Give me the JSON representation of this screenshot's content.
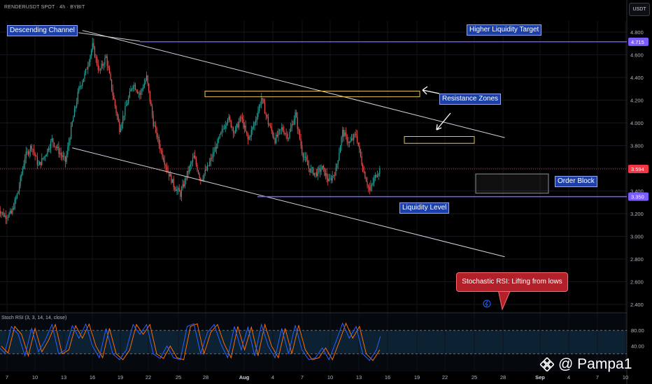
{
  "header": {
    "symbol": "RENDERUSDT SPOT · 4h · BYBIT",
    "currency": "USDT"
  },
  "annotations": {
    "descending_channel": "Descending Channel",
    "higher_liquidity_target": "Higher Liquidity Target",
    "resistance_zones": "Resistance Zones",
    "order_block": "Order Block",
    "liquidity_level": "Liquidity Level",
    "stoch_callout": "Stochastic RSI: Lifting from lows"
  },
  "watermark": "@ Pampa1",
  "colors": {
    "up": "#26a69a",
    "down": "#ef5350",
    "level": "#7b5cff",
    "zone": "#e6c350",
    "rsi_k": "#2962ff",
    "rsi_d": "#ff6d00",
    "price_line": "#f23645"
  },
  "chart_data": {
    "type": "candlestick",
    "price_axis": {
      "ylim": [
        2.3,
        4.95
      ],
      "ticks": [
        "4.800",
        "4.600",
        "4.400",
        "4.200",
        "4.000",
        "3.800",
        "3.600",
        "3.400",
        "3.200",
        "3.000",
        "2.800",
        "2.600",
        "2.400"
      ]
    },
    "x_axis": {
      "ticks": [
        "7",
        "10",
        "13",
        "16",
        "19",
        "22",
        "25",
        "28",
        "Aug",
        "4",
        "7",
        "10",
        "13",
        "16",
        "19",
        "22",
        "25",
        "28",
        "Sep",
        "4",
        "7",
        "10"
      ]
    },
    "price_labels": [
      {
        "value": 4.715,
        "text": "4.715",
        "color": "#7b5cff"
      },
      {
        "value": 3.594,
        "text": "3.594",
        "color": "#f23645"
      },
      {
        "value": 3.35,
        "text": "3.350",
        "color": "#7b5cff"
      }
    ],
    "levels": [
      {
        "name": "Higher Liquidity Target",
        "value": 4.715
      },
      {
        "name": "Liquidity Level",
        "value": 3.35
      }
    ],
    "last_price": 3.594,
    "resistance_zones": [
      {
        "from": 4.23,
        "to": 4.28
      },
      {
        "from": 3.82,
        "to": 3.88
      }
    ],
    "order_block": {
      "from": 3.38,
      "to": 3.55
    },
    "price_path": [
      {
        "day": 6.0,
        "price": 3.25
      },
      {
        "day": 7.0,
        "price": 3.18
      },
      {
        "day": 8.0,
        "price": 3.2
      },
      {
        "day": 9.0,
        "price": 3.4
      },
      {
        "day": 10.0,
        "price": 3.7
      },
      {
        "day": 11.0,
        "price": 3.8
      },
      {
        "day": 12.0,
        "price": 3.62
      },
      {
        "day": 13.0,
        "price": 3.72
      },
      {
        "day": 14.0,
        "price": 3.85
      },
      {
        "day": 15.0,
        "price": 3.75
      },
      {
        "day": 16.0,
        "price": 3.66
      },
      {
        "day": 17.0,
        "price": 4.0
      },
      {
        "day": 18.0,
        "price": 4.3
      },
      {
        "day": 19.0,
        "price": 4.45
      },
      {
        "day": 20.0,
        "price": 4.68
      },
      {
        "day": 21.0,
        "price": 4.45
      },
      {
        "day": 22.0,
        "price": 4.58
      },
      {
        "day": 23.0,
        "price": 4.25
      },
      {
        "day": 24.0,
        "price": 3.95
      },
      {
        "day": 25.0,
        "price": 4.15
      },
      {
        "day": 26.0,
        "price": 4.35
      },
      {
        "day": 27.0,
        "price": 4.25
      },
      {
        "day": 28.0,
        "price": 4.4
      },
      {
        "day": 29.0,
        "price": 4.0
      },
      {
        "day": 30.0,
        "price": 3.78
      },
      {
        "day": 31.0,
        "price": 3.6
      },
      {
        "day": 32.0,
        "price": 3.45
      },
      {
        "day": 33.0,
        "price": 3.37
      },
      {
        "day": 34.0,
        "price": 3.55
      },
      {
        "day": 35.0,
        "price": 3.7
      },
      {
        "day": 36.0,
        "price": 3.5
      },
      {
        "day": 37.0,
        "price": 3.6
      },
      {
        "day": 38.0,
        "price": 3.75
      },
      {
        "day": 39.0,
        "price": 3.9
      },
      {
        "day": 40.0,
        "price": 4.05
      },
      {
        "day": 41.0,
        "price": 3.92
      },
      {
        "day": 42.0,
        "price": 4.05
      },
      {
        "day": 43.0,
        "price": 3.85
      },
      {
        "day": 44.0,
        "price": 4.0
      },
      {
        "day": 45.0,
        "price": 4.22
      },
      {
        "day": 46.0,
        "price": 4.0
      },
      {
        "day": 47.0,
        "price": 3.85
      },
      {
        "day": 48.0,
        "price": 3.95
      },
      {
        "day": 49.0,
        "price": 3.88
      },
      {
        "day": 50.0,
        "price": 4.08
      },
      {
        "day": 51.0,
        "price": 3.75
      },
      {
        "day": 52.0,
        "price": 3.6
      },
      {
        "day": 53.0,
        "price": 3.55
      },
      {
        "day": 54.0,
        "price": 3.6
      },
      {
        "day": 55.0,
        "price": 3.48
      },
      {
        "day": 56.0,
        "price": 3.58
      },
      {
        "day": 57.0,
        "price": 3.92
      },
      {
        "day": 58.0,
        "price": 3.82
      },
      {
        "day": 59.0,
        "price": 3.9
      },
      {
        "day": 60.0,
        "price": 3.6
      },
      {
        "day": 61.0,
        "price": 3.4
      },
      {
        "day": 62.0,
        "price": 3.55
      },
      {
        "day": 62.6,
        "price": 3.594
      }
    ],
    "stoch_rsi": {
      "title": "Stoch RSI (3, 3, 14, 14, close)",
      "ylim": [
        0,
        100
      ],
      "ticks": [
        "80.00",
        "40.00"
      ],
      "bands": [
        20,
        80
      ],
      "k_path": [
        {
          "day": 6.0,
          "value": 40
        },
        {
          "day": 7.0,
          "value": 22
        },
        {
          "day": 8.0,
          "value": 90
        },
        {
          "day": 9.0,
          "value": 70
        },
        {
          "day": 10.0,
          "value": 15
        },
        {
          "day": 11.0,
          "value": 85
        },
        {
          "day": 12.0,
          "value": 25
        },
        {
          "day": 13.0,
          "value": 55
        },
        {
          "day": 14.0,
          "value": 95
        },
        {
          "day": 15.0,
          "value": 20
        },
        {
          "day": 16.0,
          "value": 30
        },
        {
          "day": 17.0,
          "value": 92
        },
        {
          "day": 18.0,
          "value": 60
        },
        {
          "day": 19.0,
          "value": 96
        },
        {
          "day": 20.0,
          "value": 40
        },
        {
          "day": 21.0,
          "value": 10
        },
        {
          "day": 22.0,
          "value": 85
        },
        {
          "day": 23.0,
          "value": 20
        },
        {
          "day": 24.0,
          "value": 5
        },
        {
          "day": 25.0,
          "value": 30
        },
        {
          "day": 26.0,
          "value": 95
        },
        {
          "day": 27.0,
          "value": 70
        },
        {
          "day": 28.0,
          "value": 95
        },
        {
          "day": 29.0,
          "value": 20
        },
        {
          "day": 30.0,
          "value": 8
        },
        {
          "day": 31.0,
          "value": 40
        },
        {
          "day": 32.0,
          "value": 10
        },
        {
          "day": 33.0,
          "value": 5
        },
        {
          "day": 34.0,
          "value": 90
        },
        {
          "day": 35.0,
          "value": 97
        },
        {
          "day": 36.0,
          "value": 20
        },
        {
          "day": 37.0,
          "value": 75
        },
        {
          "day": 38.0,
          "value": 95
        },
        {
          "day": 39.0,
          "value": 45
        },
        {
          "day": 40.0,
          "value": 10
        },
        {
          "day": 41.0,
          "value": 90
        },
        {
          "day": 42.0,
          "value": 30
        },
        {
          "day": 43.0,
          "value": 88
        },
        {
          "day": 44.0,
          "value": 15
        },
        {
          "day": 45.0,
          "value": 95
        },
        {
          "day": 46.0,
          "value": 40
        },
        {
          "day": 47.0,
          "value": 10
        },
        {
          "day": 48.0,
          "value": 85
        },
        {
          "day": 49.0,
          "value": 20
        },
        {
          "day": 50.0,
          "value": 93
        },
        {
          "day": 51.0,
          "value": 30
        },
        {
          "day": 52.0,
          "value": 5
        },
        {
          "day": 53.0,
          "value": 10
        },
        {
          "day": 54.0,
          "value": 35
        },
        {
          "day": 55.0,
          "value": 5
        },
        {
          "day": 56.0,
          "value": 50
        },
        {
          "day": 57.0,
          "value": 98
        },
        {
          "day": 58.0,
          "value": 60
        },
        {
          "day": 59.0,
          "value": 90
        },
        {
          "day": 60.0,
          "value": 20
        },
        {
          "day": 61.0,
          "value": 3
        },
        {
          "day": 62.0,
          "value": 30
        },
        {
          "day": 62.6,
          "value": 65
        }
      ],
      "d_lag_days": 0.5
    }
  }
}
